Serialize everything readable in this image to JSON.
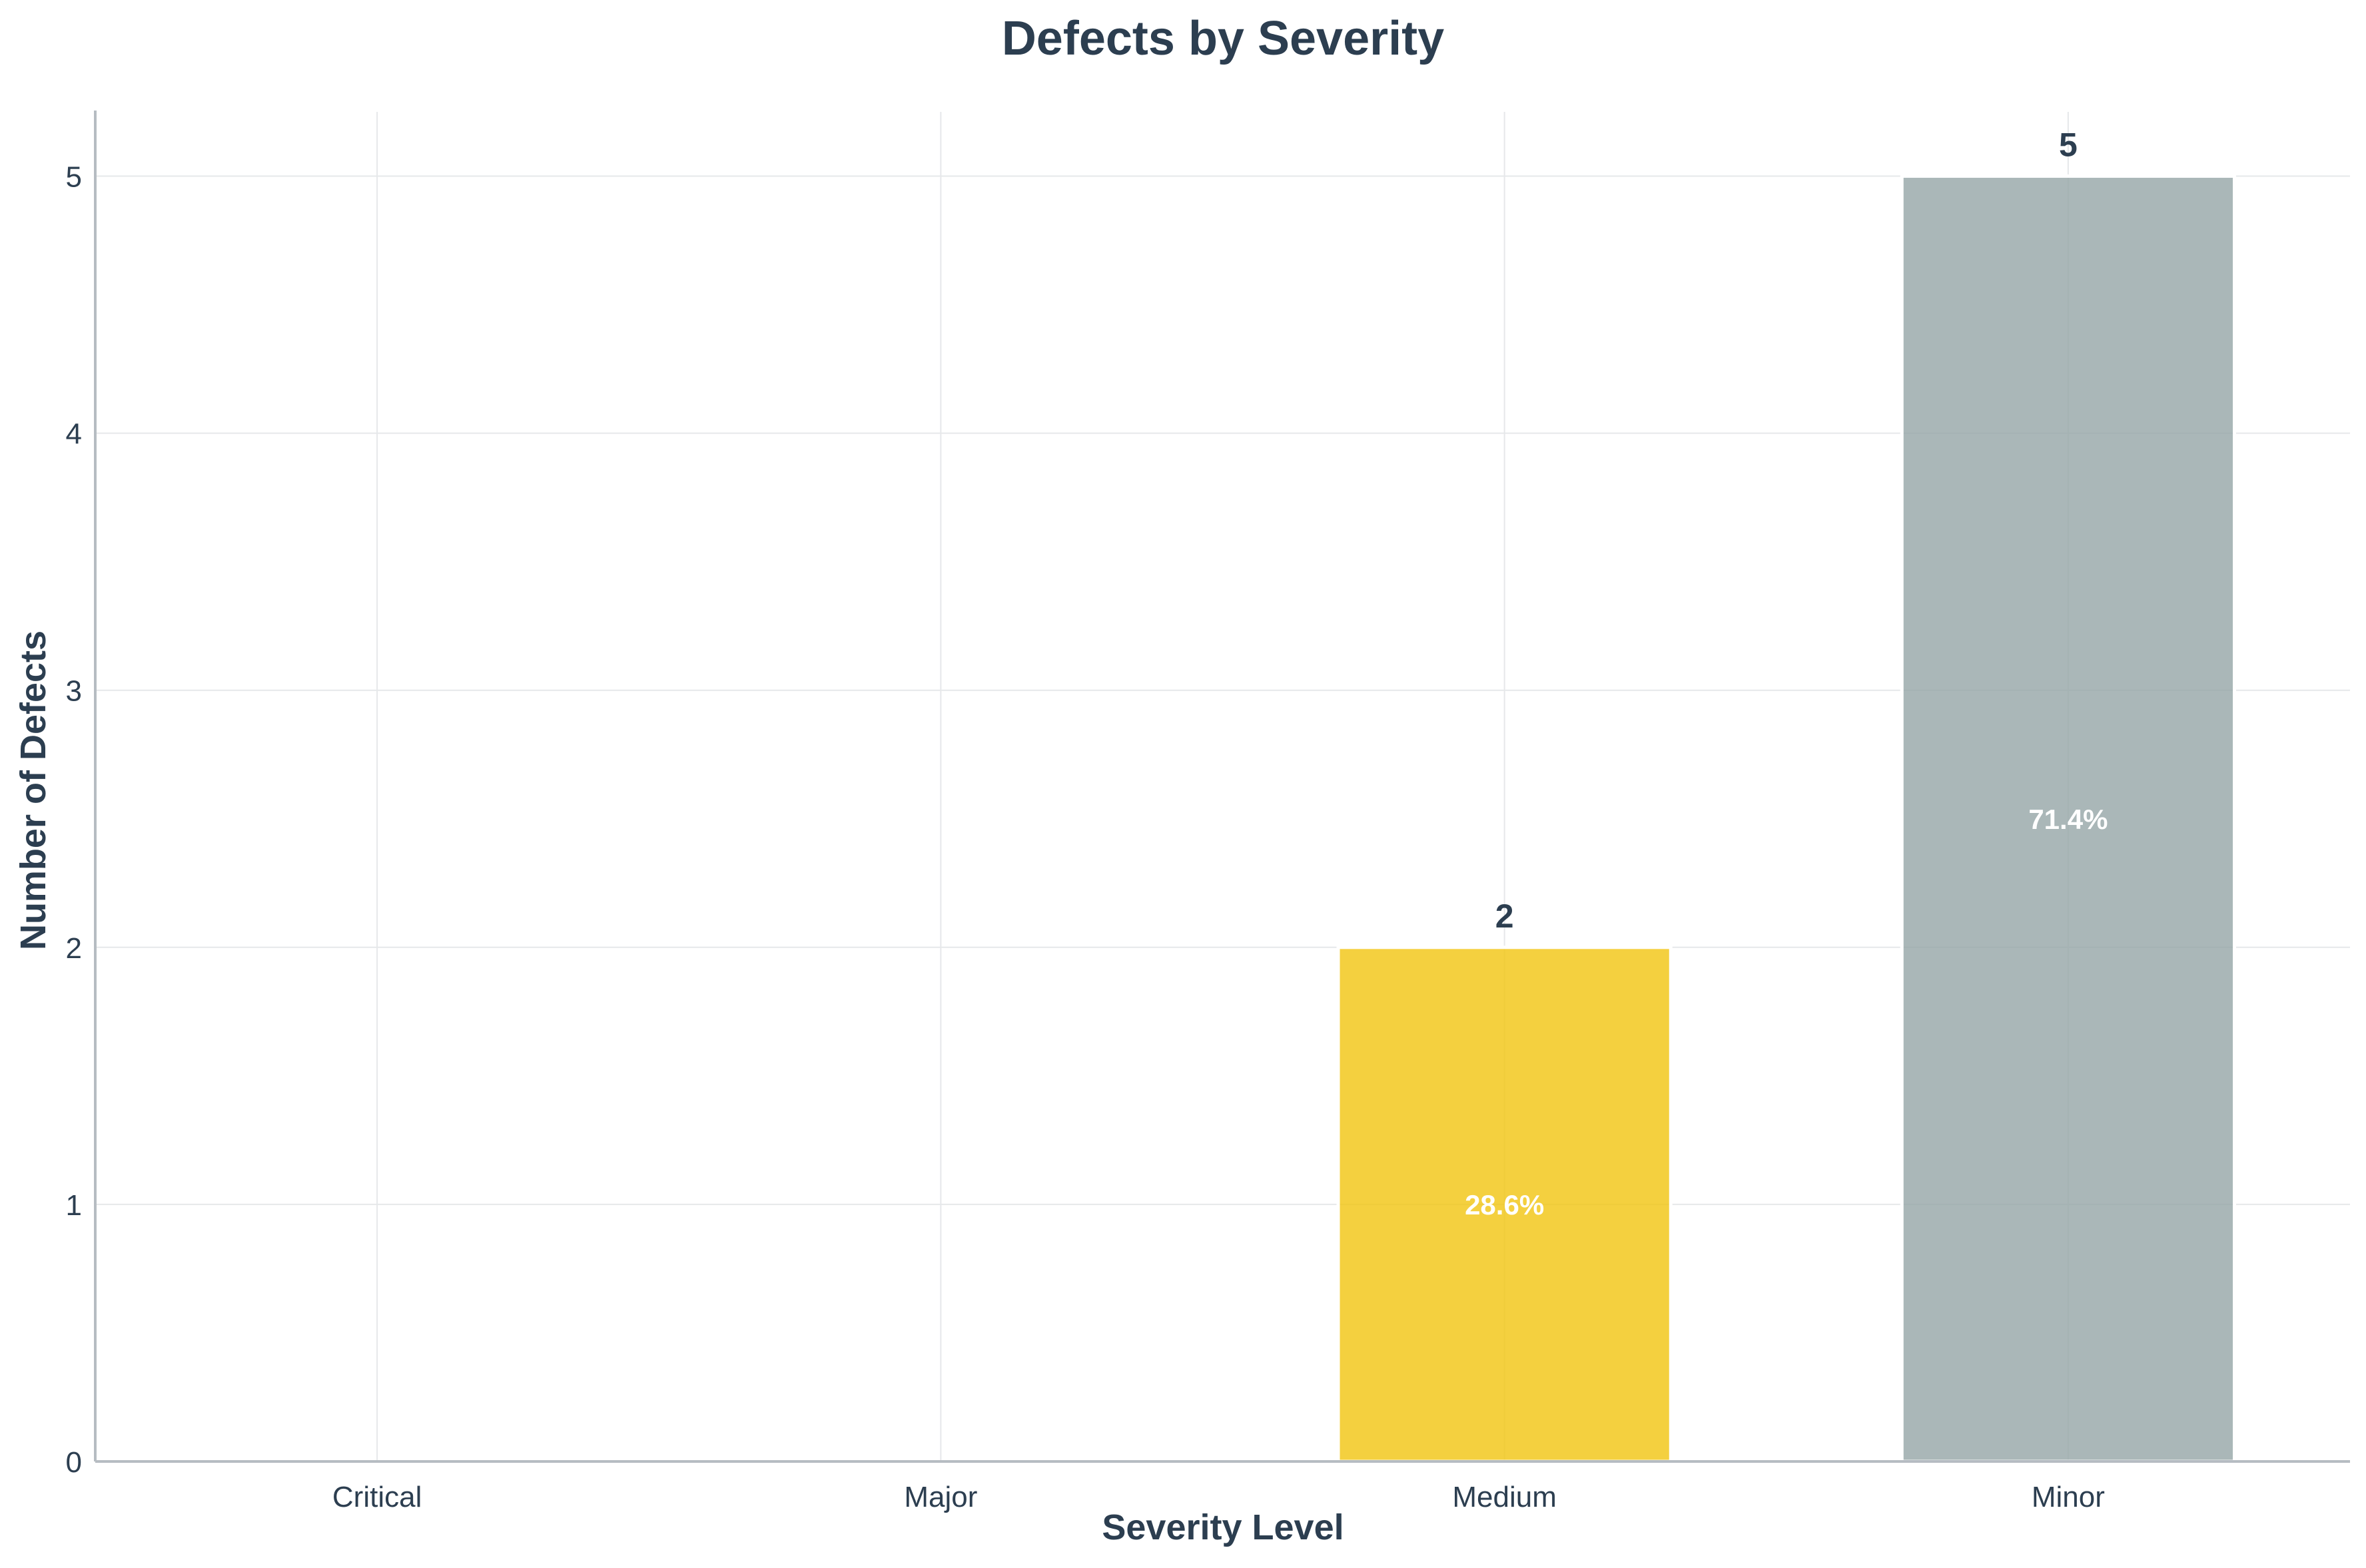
{
  "chart_data": {
    "type": "bar",
    "title": "Defects by Severity",
    "xlabel": "Severity Level",
    "ylabel": "Number of Defects",
    "categories": [
      "Critical",
      "Major",
      "Medium",
      "Minor"
    ],
    "values": [
      0,
      0,
      2,
      5
    ],
    "percent_labels": [
      "",
      "",
      "28.6%",
      "71.4%"
    ],
    "bar_colors": [
      "#e74c3c",
      "#e67e22",
      "#f1c40f",
      "#95a5a6"
    ],
    "ylim": [
      0,
      5.25
    ],
    "yticks": [
      0,
      1,
      2,
      3,
      4,
      5
    ],
    "grid": true,
    "legend": "none"
  }
}
